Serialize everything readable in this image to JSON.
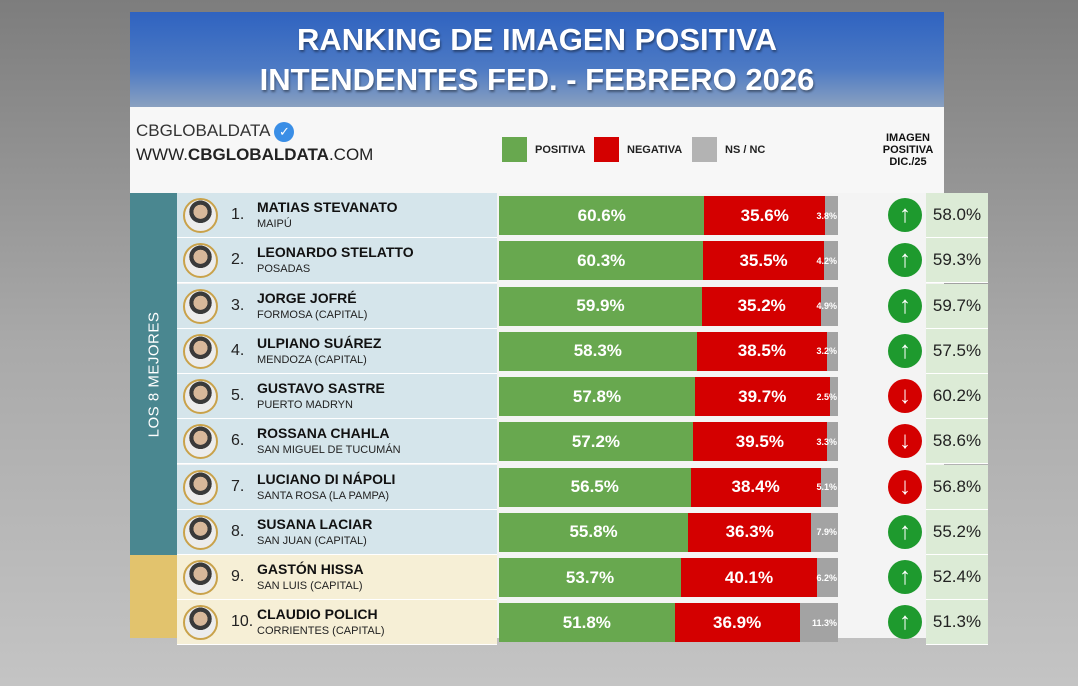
{
  "header": {
    "title_line1": "RANKING DE IMAGEN POSITIVA",
    "title_line2": "INTENDENTES FED. - FEBRERO 2026"
  },
  "brand": {
    "name": "CBGLOBALDATA",
    "url_prefix": "WWW.",
    "url_bold": "CBGLOBALDATA",
    "url_suffix": ".COM"
  },
  "legend": {
    "positiva": "POSITIVA",
    "negativa": "NEGATIVA",
    "nsnc": "NS / NC",
    "prev_header": "IMAGEN POSITIVA DIC./25"
  },
  "group_label": "LOS 8 MEJORES",
  "colors": {
    "positiva": "#68a84f",
    "negativa": "#d40000",
    "nsnc": "#a3a3a3",
    "up": "#1e9a2e",
    "down": "#d40000"
  },
  "chart_data": {
    "type": "bar",
    "stacked": true,
    "orientation": "horizontal",
    "title": "RANKING DE IMAGEN POSITIVA INTENDENTES FED. - FEBRERO 2026",
    "series_names": [
      "POSITIVA",
      "NEGATIVA",
      "NS / NC"
    ],
    "rows": [
      {
        "rank": "1.",
        "name": "MATIAS STEVANATO",
        "city": "MAIPÚ",
        "positiva": 60.6,
        "negativa": 35.6,
        "nsnc": 3.8,
        "trend": "up",
        "prev": "58.0%"
      },
      {
        "rank": "2.",
        "name": "LEONARDO STELATTO",
        "city": "POSADAS",
        "positiva": 60.3,
        "negativa": 35.5,
        "nsnc": 4.2,
        "trend": "up",
        "prev": "59.3%"
      },
      {
        "rank": "3.",
        "name": "JORGE JOFRÉ",
        "city": "FORMOSA (CAPITAL)",
        "positiva": 59.9,
        "negativa": 35.2,
        "nsnc": 4.9,
        "trend": "up",
        "prev": "59.7%"
      },
      {
        "rank": "4.",
        "name": "ULPIANO SUÁREZ",
        "city": "MENDOZA (CAPITAL)",
        "positiva": 58.3,
        "negativa": 38.5,
        "nsnc": 3.2,
        "trend": "up",
        "prev": "57.5%"
      },
      {
        "rank": "5.",
        "name": "GUSTAVO SASTRE",
        "city": "PUERTO MADRYN",
        "positiva": 57.8,
        "negativa": 39.7,
        "nsnc": 2.5,
        "trend": "down",
        "prev": "60.2%"
      },
      {
        "rank": "6.",
        "name": "ROSSANA CHAHLA",
        "city": "SAN MIGUEL DE TUCUMÁN",
        "positiva": 57.2,
        "negativa": 39.5,
        "nsnc": 3.3,
        "trend": "down",
        "prev": "58.6%"
      },
      {
        "rank": "7.",
        "name": "LUCIANO DI NÁPOLI",
        "city": "SANTA ROSA (LA PAMPA)",
        "positiva": 56.5,
        "negativa": 38.4,
        "nsnc": 5.1,
        "trend": "down",
        "prev": "56.8%"
      },
      {
        "rank": "8.",
        "name": "SUSANA LACIAR",
        "city": "SAN JUAN (CAPITAL)",
        "positiva": 55.8,
        "negativa": 36.3,
        "nsnc": 7.9,
        "trend": "up",
        "prev": "55.2%"
      },
      {
        "rank": "9.",
        "name": "GASTÓN HISSA",
        "city": "SAN LUIS (CAPITAL)",
        "positiva": 53.7,
        "negativa": 40.1,
        "nsnc": 6.2,
        "trend": "up",
        "prev": "52.4%"
      },
      {
        "rank": "10.",
        "name": "CLAUDIO POLICH",
        "city": "CORRIENTES (CAPITAL)",
        "positiva": 51.8,
        "negativa": 36.9,
        "nsnc": 11.3,
        "trend": "up",
        "prev": "51.3%"
      }
    ]
  }
}
